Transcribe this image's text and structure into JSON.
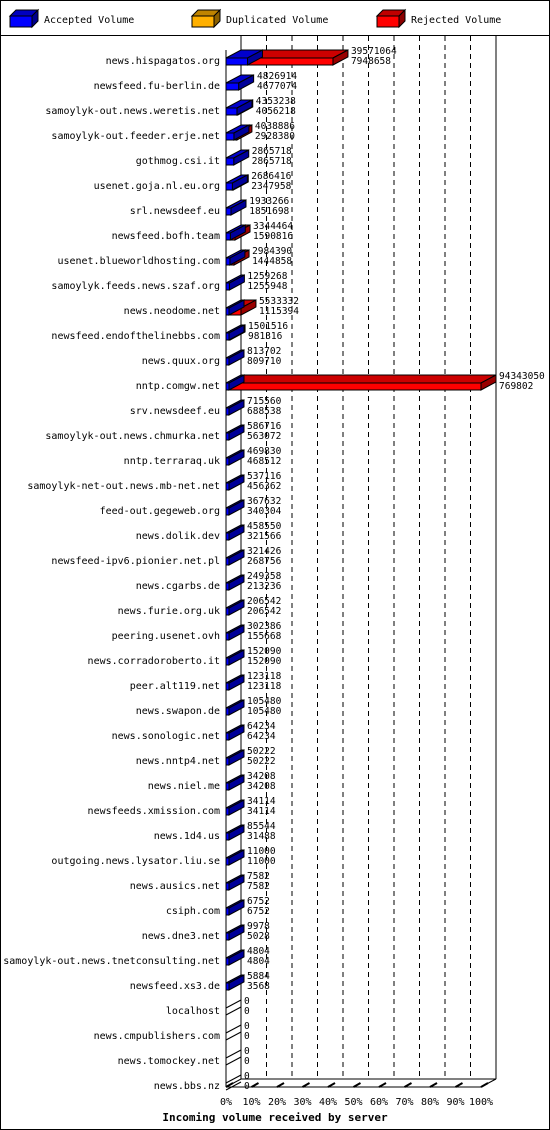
{
  "legend": [
    {
      "label": "Accepted Volume",
      "color": "#0000ff"
    },
    {
      "label": "Duplicated Volume",
      "color": "#ffb000"
    },
    {
      "label": "Rejected Volume",
      "color": "#ff0000"
    }
  ],
  "chart_data": {
    "type": "bar",
    "orientation": "horizontal",
    "xlabel": "Incoming volume received by server",
    "xticks": [
      "0%",
      "10%",
      "20%",
      "30%",
      "40%",
      "50%",
      "60%",
      "70%",
      "80%",
      "90%",
      "100%"
    ],
    "xlim": [
      0,
      100
    ],
    "series": [
      {
        "name": "Accepted Volume",
        "color": "#0000ff"
      },
      {
        "name": "Duplicated Volume",
        "color": "#ffb000"
      },
      {
        "name": "Rejected Volume",
        "color": "#ff0000"
      }
    ],
    "rows": [
      {
        "server": "news.hispagatos.org",
        "total": "39571064",
        "accepted": "7948658"
      },
      {
        "server": "newsfeed.fu-berlin.de",
        "total": "4826914",
        "accepted": "4677074"
      },
      {
        "server": "samoylyk-out.news.weretis.net",
        "total": "4353238",
        "accepted": "4056218"
      },
      {
        "server": "samoylyk-out.feeder.erje.net",
        "total": "4038886",
        "accepted": "2928380"
      },
      {
        "server": "gothmog.csi.it",
        "total": "2865718",
        "accepted": "2865718"
      },
      {
        "server": "usenet.goja.nl.eu.org",
        "total": "2686416",
        "accepted": "2347958"
      },
      {
        "server": "srl.newsdeef.eu",
        "total": "1933266",
        "accepted": "1851698"
      },
      {
        "server": "newsfeed.bofh.team",
        "total": "3344464",
        "accepted": "1590816"
      },
      {
        "server": "usenet.blueworldhosting.com",
        "total": "2984390",
        "accepted": "1444858"
      },
      {
        "server": "samoylyk.feeds.news.szaf.org",
        "total": "1259268",
        "accepted": "1255948"
      },
      {
        "server": "news.neodome.net",
        "total": "5533332",
        "accepted": "1115394"
      },
      {
        "server": "newsfeed.endofthelinebbs.com",
        "total": "1501516",
        "accepted": "981316"
      },
      {
        "server": "news.quux.org",
        "total": "813702",
        "accepted": "809710"
      },
      {
        "server": "nntp.comgw.net",
        "total": "94343050",
        "accepted": "769802"
      },
      {
        "server": "srv.newsdeef.eu",
        "total": "715560",
        "accepted": "688538"
      },
      {
        "server": "samoylyk-out.news.chmurka.net",
        "total": "586716",
        "accepted": "563072"
      },
      {
        "server": "nntp.terraraq.uk",
        "total": "469830",
        "accepted": "468512"
      },
      {
        "server": "samoylyk-net-out.news.mb-net.net",
        "total": "537116",
        "accepted": "456362"
      },
      {
        "server": "feed-out.gegeweb.org",
        "total": "367632",
        "accepted": "340304"
      },
      {
        "server": "news.dolik.dev",
        "total": "458550",
        "accepted": "321566"
      },
      {
        "server": "newsfeed-ipv6.pionier.net.pl",
        "total": "321426",
        "accepted": "268756"
      },
      {
        "server": "news.cgarbs.de",
        "total": "249358",
        "accepted": "213236"
      },
      {
        "server": "news.furie.org.uk",
        "total": "206542",
        "accepted": "206542"
      },
      {
        "server": "peering.usenet.ovh",
        "total": "302386",
        "accepted": "155668"
      },
      {
        "server": "news.corradoroberto.it",
        "total": "152090",
        "accepted": "152090"
      },
      {
        "server": "peer.alt119.net",
        "total": "123118",
        "accepted": "123118"
      },
      {
        "server": "news.swapon.de",
        "total": "105480",
        "accepted": "105480"
      },
      {
        "server": "news.sonologic.net",
        "total": "64234",
        "accepted": "64234"
      },
      {
        "server": "news.nntp4.net",
        "total": "50222",
        "accepted": "50222"
      },
      {
        "server": "news.niel.me",
        "total": "34208",
        "accepted": "34208"
      },
      {
        "server": "newsfeeds.xmission.com",
        "total": "34114",
        "accepted": "34114"
      },
      {
        "server": "news.1d4.us",
        "total": "85544",
        "accepted": "31488"
      },
      {
        "server": "outgoing.news.lysator.liu.se",
        "total": "11000",
        "accepted": "11000"
      },
      {
        "server": "news.ausics.net",
        "total": "7582",
        "accepted": "7582"
      },
      {
        "server": "csiph.com",
        "total": "6752",
        "accepted": "6752"
      },
      {
        "server": "news.dne3.net",
        "total": "9978",
        "accepted": "5028"
      },
      {
        "server": "samoylyk-out.news.tnetconsulting.net",
        "total": "4804",
        "accepted": "4804"
      },
      {
        "server": "newsfeed.xs3.de",
        "total": "5884",
        "accepted": "3568"
      },
      {
        "server": "localhost",
        "total": "0",
        "accepted": "0"
      },
      {
        "server": "news.cmpublishers.com",
        "total": "0",
        "accepted": "0"
      },
      {
        "server": "news.tomockey.net",
        "total": "0",
        "accepted": "0"
      },
      {
        "server": "news.bbs.nz",
        "total": "0",
        "accepted": "0"
      }
    ]
  }
}
